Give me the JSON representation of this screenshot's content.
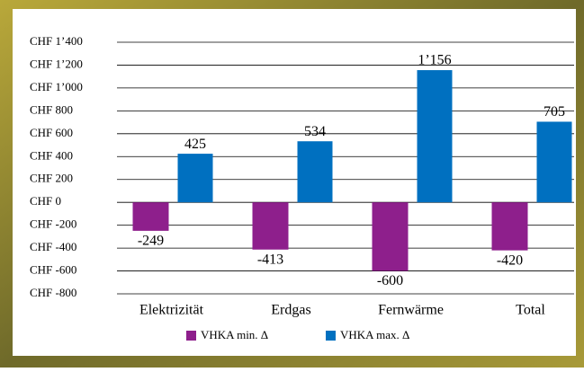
{
  "chart_data": {
    "type": "bar",
    "categories": [
      "Elektrizität",
      "Erdgas",
      "Fernwärme",
      "Total"
    ],
    "series": [
      {
        "name": "VHKA min. Δ",
        "color": "#8e1f8c",
        "values": [
          -249,
          -413,
          -600,
          -420
        ],
        "value_labels": [
          "-249",
          "-413",
          "-600",
          "-420"
        ]
      },
      {
        "name": "VHKA max. Δ",
        "color": "#0070c0",
        "values": [
          425,
          534,
          1156,
          705
        ],
        "value_labels": [
          "425",
          "534",
          "1’156",
          "705"
        ]
      }
    ],
    "ylim": [
      -800,
      1400
    ],
    "yticks": [
      {
        "value": -800,
        "label": "CHF -800"
      },
      {
        "value": -600,
        "label": "CHF -600"
      },
      {
        "value": -400,
        "label": "CHF -400"
      },
      {
        "value": -200,
        "label": "CHF -200"
      },
      {
        "value": 0,
        "label": "CHF 0"
      },
      {
        "value": 200,
        "label": "CHF 200"
      },
      {
        "value": 400,
        "label": "CHF 400"
      },
      {
        "value": 600,
        "label": "CHF 600"
      },
      {
        "value": 800,
        "label": "CHF 800"
      },
      {
        "value": 1000,
        "label": "CHF 1’000"
      },
      {
        "value": 1200,
        "label": "CHF 1’200"
      },
      {
        "value": 1400,
        "label": "CHF 1’400"
      }
    ],
    "grid": true,
    "legend": "bottom"
  }
}
